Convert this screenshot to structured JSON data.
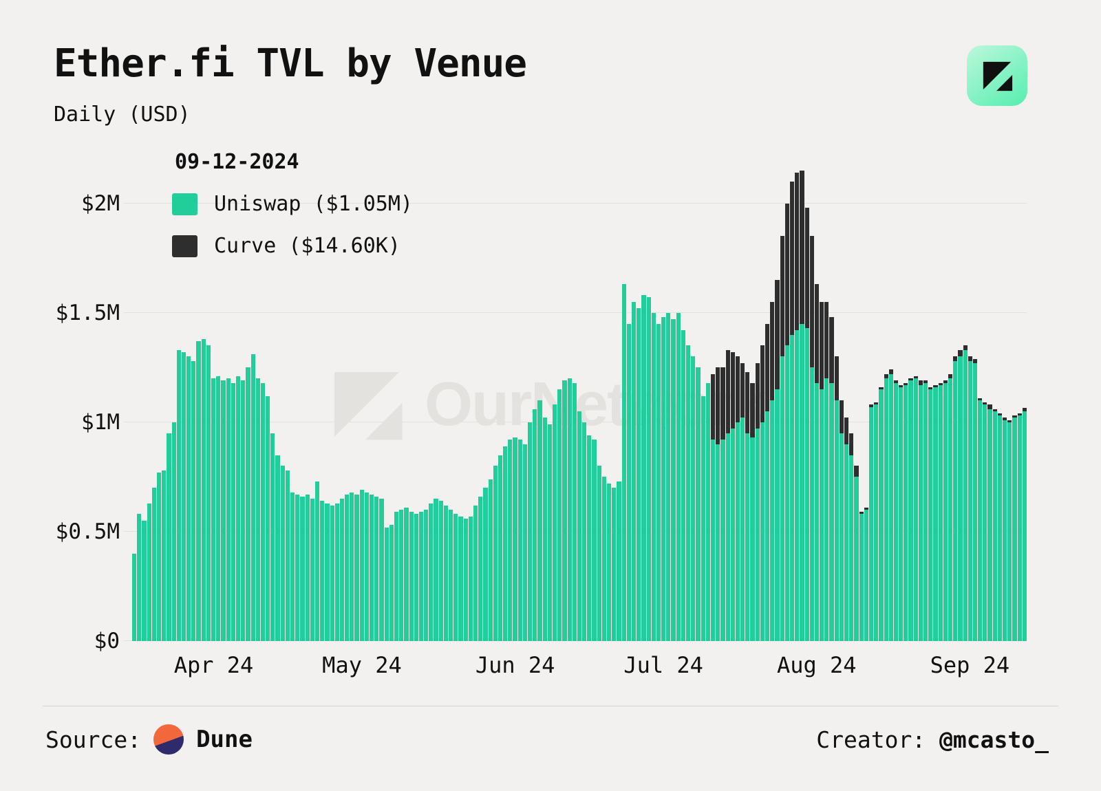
{
  "header": {
    "title": "Ether.fi TVL by Venue",
    "subtitle": "Daily (USD)"
  },
  "legend": {
    "date": "09-12-2024",
    "items": [
      {
        "label": "Uniswap ($1.05M)",
        "color": "#21ce99"
      },
      {
        "label": "Curve ($14.60K)",
        "color": "#2e2e2e"
      }
    ]
  },
  "watermark": "OurNetwork",
  "footer": {
    "source_label": "Source:",
    "source_name": "Dune",
    "creator_label": "Creator: ",
    "creator_handle": "@mcasto_"
  },
  "chart_data": {
    "type": "bar",
    "stacked": true,
    "title": "Ether.fi TVL by Venue",
    "subtitle": "Daily (USD)",
    "unit": "USD millions",
    "start_date": "2024-03-16",
    "end_date": "2024-09-12",
    "grid": true,
    "legend_position": "top-left",
    "ylim": [
      0,
      2.2
    ],
    "y_ticks": [
      {
        "v": 0,
        "label": "$0"
      },
      {
        "v": 0.5,
        "label": "$0.5M"
      },
      {
        "v": 1.0,
        "label": "$1M"
      },
      {
        "v": 1.5,
        "label": "$1.5M"
      },
      {
        "v": 2.0,
        "label": "$2M"
      }
    ],
    "x_ticks": [
      {
        "i": 16,
        "label": "Apr 24"
      },
      {
        "i": 46,
        "label": "May 24"
      },
      {
        "i": 77,
        "label": "Jun 24"
      },
      {
        "i": 107,
        "label": "Jul 24"
      },
      {
        "i": 138,
        "label": "Aug 24"
      },
      {
        "i": 169,
        "label": "Sep 24"
      }
    ],
    "series": [
      {
        "name": "Uniswap",
        "color": "#21ce99",
        "values": [
          0.4,
          0.58,
          0.55,
          0.63,
          0.7,
          0.77,
          0.78,
          0.95,
          1.0,
          1.33,
          1.32,
          1.3,
          1.28,
          1.37,
          1.38,
          1.35,
          1.2,
          1.21,
          1.19,
          1.2,
          1.18,
          1.21,
          1.19,
          1.25,
          1.31,
          1.2,
          1.18,
          1.12,
          0.95,
          0.85,
          0.8,
          0.78,
          0.68,
          0.67,
          0.66,
          0.67,
          0.65,
          0.73,
          0.64,
          0.63,
          0.62,
          0.63,
          0.65,
          0.67,
          0.68,
          0.67,
          0.69,
          0.68,
          0.67,
          0.66,
          0.65,
          0.52,
          0.53,
          0.59,
          0.6,
          0.61,
          0.59,
          0.58,
          0.59,
          0.6,
          0.63,
          0.65,
          0.64,
          0.62,
          0.6,
          0.58,
          0.57,
          0.56,
          0.57,
          0.62,
          0.66,
          0.7,
          0.74,
          0.8,
          0.85,
          0.89,
          0.92,
          0.93,
          0.92,
          0.9,
          1.0,
          1.06,
          1.1,
          1.02,
          0.99,
          1.08,
          1.15,
          1.19,
          1.2,
          1.18,
          1.05,
          1.0,
          0.94,
          0.92,
          0.8,
          0.75,
          0.72,
          0.7,
          0.73,
          1.63,
          1.45,
          1.55,
          1.52,
          1.58,
          1.57,
          1.5,
          1.45,
          1.48,
          1.5,
          1.47,
          1.5,
          1.42,
          1.35,
          1.3,
          1.25,
          1.12,
          1.18,
          0.92,
          0.9,
          0.92,
          0.95,
          0.97,
          1.0,
          1.02,
          0.95,
          0.93,
          0.97,
          1.0,
          1.05,
          1.1,
          1.15,
          1.3,
          1.35,
          1.4,
          1.42,
          1.45,
          1.43,
          1.25,
          1.18,
          1.15,
          1.2,
          1.18,
          1.1,
          0.95,
          0.9,
          0.85,
          0.75,
          0.58,
          0.6,
          1.07,
          1.08,
          1.15,
          1.2,
          1.22,
          1.18,
          1.16,
          1.17,
          1.19,
          1.2,
          1.17,
          1.18,
          1.15,
          1.16,
          1.17,
          1.18,
          1.2,
          1.28,
          1.3,
          1.33,
          1.28,
          1.27,
          1.1,
          1.08,
          1.06,
          1.05,
          1.03,
          1.01,
          1.0,
          1.02,
          1.03,
          1.05
        ]
      },
      {
        "name": "Curve",
        "color": "#2e2e2e",
        "values": [
          0,
          0,
          0,
          0,
          0,
          0,
          0,
          0,
          0,
          0,
          0,
          0,
          0,
          0,
          0,
          0,
          0,
          0,
          0,
          0,
          0,
          0,
          0,
          0,
          0,
          0,
          0,
          0,
          0,
          0,
          0,
          0,
          0,
          0,
          0,
          0,
          0,
          0,
          0,
          0,
          0,
          0,
          0,
          0,
          0,
          0,
          0,
          0,
          0,
          0,
          0,
          0,
          0,
          0,
          0,
          0,
          0,
          0,
          0,
          0,
          0,
          0,
          0,
          0,
          0,
          0,
          0,
          0,
          0,
          0,
          0,
          0,
          0,
          0,
          0,
          0,
          0,
          0,
          0,
          0,
          0,
          0,
          0,
          0,
          0,
          0,
          0,
          0,
          0,
          0,
          0,
          0,
          0,
          0,
          0,
          0,
          0,
          0,
          0,
          0,
          0,
          0,
          0,
          0,
          0,
          0,
          0,
          0,
          0,
          0,
          0,
          0,
          0,
          0,
          0,
          0,
          0,
          0.3,
          0.35,
          0.33,
          0.38,
          0.35,
          0.3,
          0.25,
          0.28,
          0.25,
          0.3,
          0.35,
          0.4,
          0.45,
          0.5,
          0.55,
          0.65,
          0.7,
          0.72,
          0.7,
          0.55,
          0.6,
          0.45,
          0.4,
          0.35,
          0.3,
          0.2,
          0.15,
          0.12,
          0.1,
          0.05,
          0.01,
          0.01,
          0.01,
          0.01,
          0.01,
          0.02,
          0.02,
          0.01,
          0.01,
          0.01,
          0.01,
          0.01,
          0.02,
          0.01,
          0.01,
          0.01,
          0.01,
          0.01,
          0.02,
          0.02,
          0.03,
          0.02,
          0.02,
          0.02,
          0.01,
          0.01,
          0.02,
          0.01,
          0.01,
          0.01,
          0.01,
          0.01,
          0.01,
          0.0146
        ]
      }
    ]
  }
}
